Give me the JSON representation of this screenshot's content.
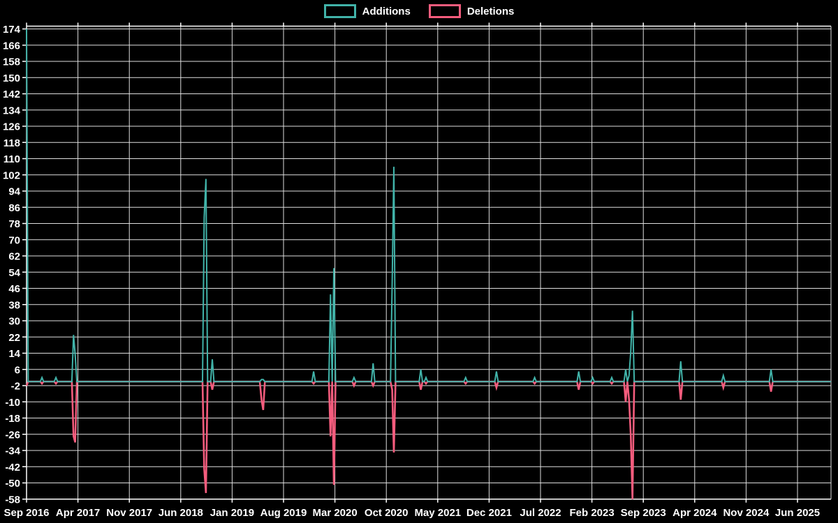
{
  "legend": {
    "additions_label": "Additions",
    "deletions_label": "Deletions"
  },
  "colors": {
    "additions": "#41b3a9",
    "deletions": "#f45c7d",
    "grid": "#dedede",
    "axis": "#ffffff",
    "background": "#000000",
    "text": "#ffffff"
  },
  "chart_data": {
    "type": "line",
    "title": "",
    "xlabel": "",
    "ylabel": "",
    "grid": true,
    "legend_position": "top-center",
    "x_axis": {
      "tick_labels": [
        "Sep 2016",
        "Apr 2017",
        "Nov 2017",
        "Jun 2018",
        "Jan 2019",
        "Aug 2019",
        "Mar 2020",
        "Oct 2020",
        "May 2021",
        "Dec 2021",
        "Jul 2022",
        "Feb 2023",
        "Sep 2023",
        "Apr 2024",
        "Nov 2024",
        "Jun 2025"
      ],
      "months_per_tick": 7
    },
    "y_axis": {
      "min": -58,
      "max": 174,
      "step": 8,
      "tick_labels": [
        "174",
        "166",
        "158",
        "150",
        "142",
        "134",
        "126",
        "118",
        "110",
        "102",
        "94",
        "86",
        "78",
        "70",
        "62",
        "54",
        "46",
        "38",
        "30",
        "22",
        "14",
        "6",
        "-2",
        "-10",
        "-18",
        "-26",
        "-34",
        "-42",
        "-50",
        "-58"
      ]
    },
    "series": [
      {
        "name": "Additions",
        "color": "#41b3a9"
      },
      {
        "name": "Deletions",
        "color": "#f45c7d"
      }
    ],
    "baseline_value": 0,
    "events": [
      {
        "date": "2016-09",
        "m": 0,
        "additions": 174,
        "deletions": -2
      },
      {
        "date": "2016-11",
        "m": 2.1,
        "additions": 2,
        "deletions": -1
      },
      {
        "date": "2017-01",
        "m": 4.0,
        "additions": 2,
        "deletions": -1
      },
      {
        "date": "2017-03",
        "m": 6.4,
        "additions": 23,
        "deletions": -27
      },
      {
        "date": "2017-03",
        "m": 6.63,
        "additions": 13,
        "deletions": -30
      },
      {
        "date": "2018-09",
        "m": 24.2,
        "additions": 81,
        "deletions": -43
      },
      {
        "date": "2018-10",
        "m": 24.43,
        "additions": 100,
        "deletions": -55
      },
      {
        "date": "2018-10",
        "m": 25.3,
        "additions": 11,
        "deletions": -4
      },
      {
        "date": "2019-05",
        "m": 32.0,
        "additions": 1,
        "deletions": -9
      },
      {
        "date": "2019-05",
        "m": 32.23,
        "additions": 1,
        "deletions": -14
      },
      {
        "date": "2019-12",
        "m": 39.1,
        "additions": 5,
        "deletions": -1
      },
      {
        "date": "2020-02",
        "m": 41.4,
        "additions": 43,
        "deletions": -27
      },
      {
        "date": "2020-03",
        "m": 41.86,
        "additions": 56,
        "deletions": -51
      },
      {
        "date": "2020-05",
        "m": 44.6,
        "additions": 2,
        "deletions": -2
      },
      {
        "date": "2020-08",
        "m": 47.2,
        "additions": 9,
        "deletions": -2
      },
      {
        "date": "2020-10",
        "m": 49.8,
        "additions": 49,
        "deletions": -4
      },
      {
        "date": "2020-11",
        "m": 50.03,
        "additions": 106,
        "deletions": -35
      },
      {
        "date": "2021-02",
        "m": 53.7,
        "additions": 6,
        "deletions": -4
      },
      {
        "date": "2021-03",
        "m": 54.4,
        "additions": 2,
        "deletions": -1
      },
      {
        "date": "2021-08",
        "m": 59.8,
        "additions": 2,
        "deletions": -1
      },
      {
        "date": "2022-01",
        "m": 64.0,
        "additions": 5,
        "deletions": -3
      },
      {
        "date": "2022-06",
        "m": 69.2,
        "additions": 2,
        "deletions": -1
      },
      {
        "date": "2022-12",
        "m": 75.2,
        "additions": 5,
        "deletions": -4
      },
      {
        "date": "2023-02",
        "m": 77.1,
        "additions": 2,
        "deletions": -1
      },
      {
        "date": "2023-04",
        "m": 79.7,
        "additions": 2,
        "deletions": -1
      },
      {
        "date": "2023-06",
        "m": 81.6,
        "additions": 6,
        "deletions": -10
      },
      {
        "date": "2023-07",
        "m": 82.06,
        "additions": 3,
        "deletions": -9
      },
      {
        "date": "2023-07",
        "m": 82.3,
        "additions": 15,
        "deletions": -27
      },
      {
        "date": "2023-07",
        "m": 82.53,
        "additions": 35,
        "deletions": -58
      },
      {
        "date": "2024-02",
        "m": 89.1,
        "additions": 10,
        "deletions": -9
      },
      {
        "date": "2024-07",
        "m": 94.9,
        "additions": 3,
        "deletions": -3
      },
      {
        "date": "2025-02",
        "m": 101.4,
        "additions": 6,
        "deletions": -5
      }
    ]
  }
}
